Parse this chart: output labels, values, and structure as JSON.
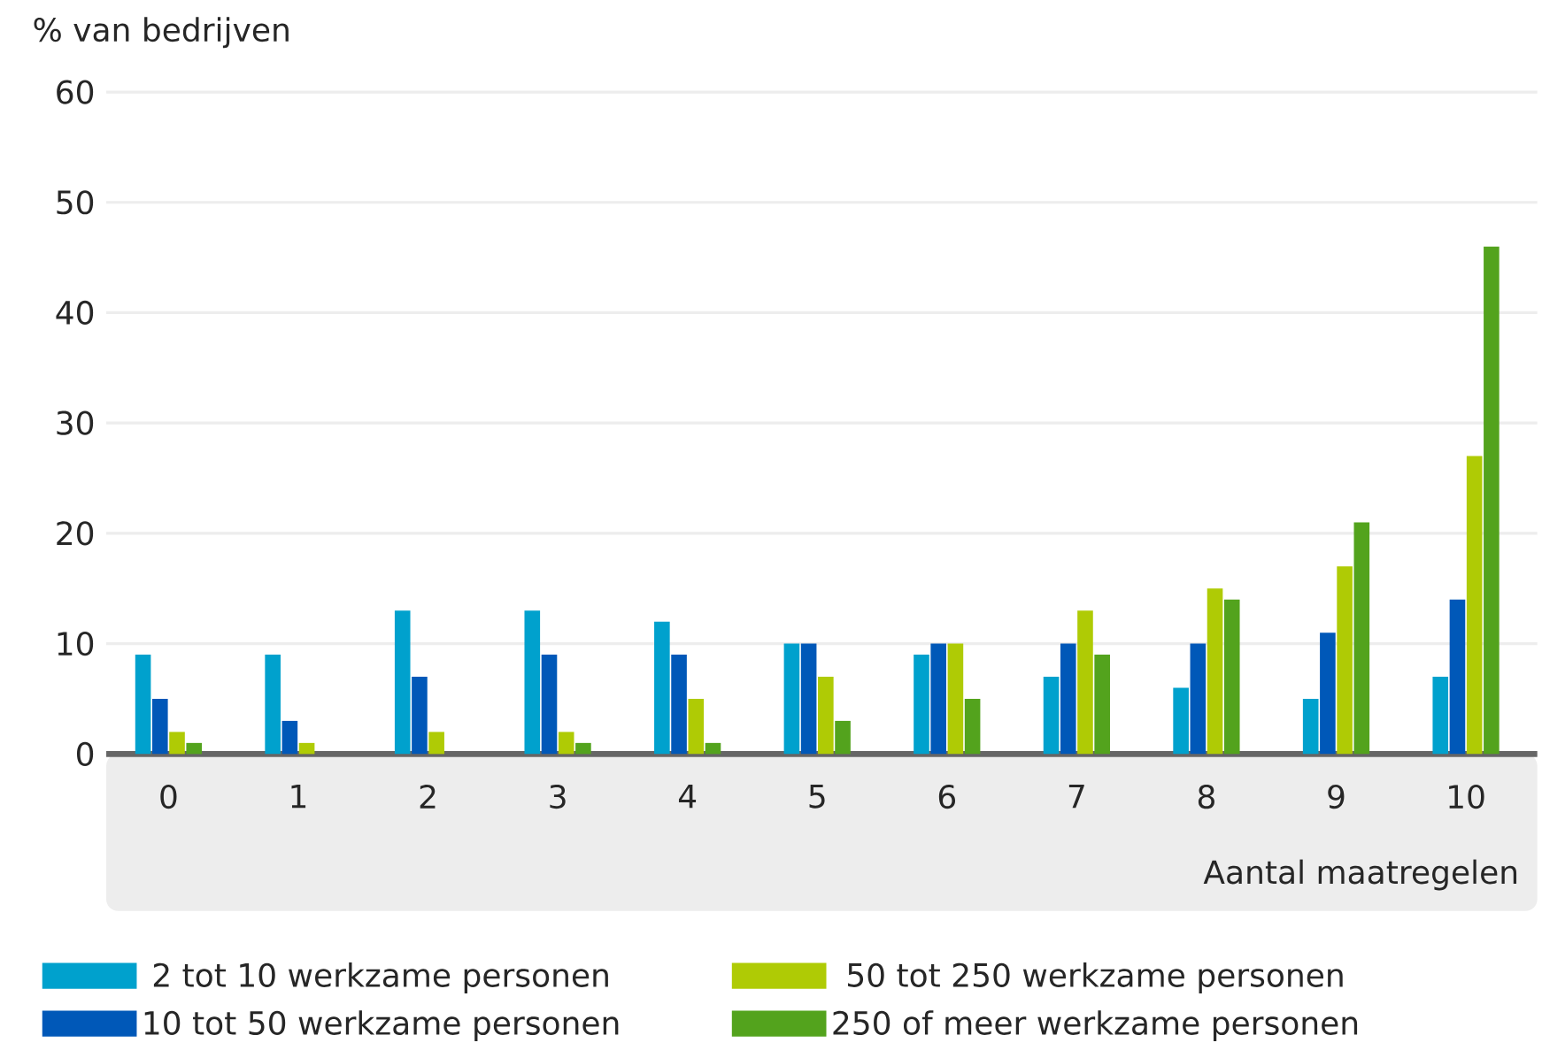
{
  "chart_data": {
    "type": "bar",
    "xlabel": "Aantal maatregelen",
    "ylabel": "% van bedrijven",
    "categories": [
      "0",
      "1",
      "2",
      "3",
      "4",
      "5",
      "6",
      "7",
      "8",
      "9",
      "10"
    ],
    "series": [
      {
        "name": "2 tot 10 werkzame personen",
        "color": "#00a1cd",
        "values": [
          9,
          9,
          13,
          13,
          12,
          10,
          9,
          7,
          6,
          5,
          7
        ]
      },
      {
        "name": "10 tot 50 werkzame personen",
        "color": "#0058b8",
        "values": [
          5,
          3,
          7,
          9,
          9,
          10,
          10,
          10,
          10,
          11,
          14
        ]
      },
      {
        "name": "50 tot 250 werkzame personen",
        "color": "#afcb05",
        "values": [
          2,
          1,
          2,
          2,
          5,
          7,
          10,
          13,
          15,
          17,
          27
        ]
      },
      {
        "name": "250 of meer werkzame personen",
        "color": "#53a31d",
        "values": [
          1,
          0,
          0,
          1,
          1,
          3,
          5,
          9,
          14,
          21,
          46
        ]
      }
    ],
    "ylim": [
      0,
      60
    ],
    "yticks": [
      0,
      10,
      20,
      30,
      40,
      50,
      60
    ],
    "grid": "y",
    "legend": "bottom"
  }
}
